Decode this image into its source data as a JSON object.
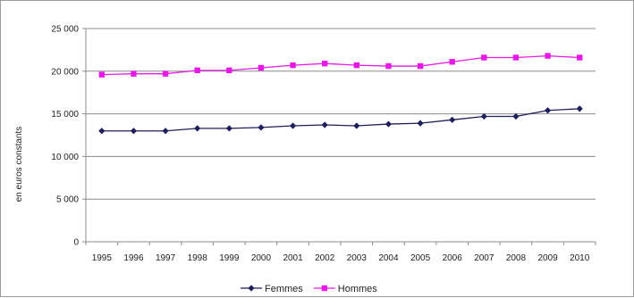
{
  "chart_data": {
    "type": "line",
    "title": "",
    "xlabel": "",
    "ylabel": "en euros constants",
    "ylim": [
      0,
      25000
    ],
    "y_ticks": [
      0,
      5000,
      10000,
      15000,
      20000,
      25000
    ],
    "y_tick_labels": [
      "0",
      "5 000",
      "10 000",
      "15 000",
      "20 000",
      "25 000"
    ],
    "grid": "horizontal",
    "legend": "bottom",
    "categories": [
      "1995",
      "1996",
      "1997",
      "1998",
      "1999",
      "2000",
      "2001",
      "2002",
      "2003",
      "2004",
      "2005",
      "2006",
      "2007",
      "2008",
      "2009",
      "2010"
    ],
    "series": [
      {
        "name": "Femmes",
        "color": "#1f1f5c",
        "marker": "diamond",
        "values": [
          13000,
          13000,
          13000,
          13300,
          13300,
          13400,
          13600,
          13700,
          13600,
          13800,
          13900,
          14300,
          14700,
          14700,
          15400,
          15600
        ]
      },
      {
        "name": "Hommes",
        "color": "#e619e6",
        "marker": "square",
        "values": [
          19600,
          19700,
          19700,
          20100,
          20100,
          20400,
          20700,
          20900,
          20700,
          20600,
          20600,
          21100,
          21600,
          21600,
          21800,
          21600
        ]
      }
    ]
  }
}
